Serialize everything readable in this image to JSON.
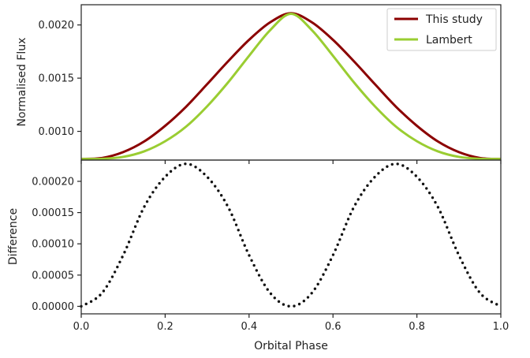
{
  "chart_data": [
    {
      "type": "line",
      "panel": "top",
      "title": "",
      "xlabel": "",
      "ylabel": "Normalised Flux",
      "xlim": [
        0.0,
        1.0
      ],
      "ylim": [
        0.00073,
        0.00219
      ],
      "yticks": [
        0.001,
        0.0015,
        0.002
      ],
      "ytick_labels": [
        "0.0010",
        "0.0015",
        "0.0020"
      ],
      "xticks": [
        0.0,
        0.2,
        0.4,
        0.6,
        0.8,
        1.0
      ],
      "grid": false,
      "legend": "top-right",
      "series": [
        {
          "name": "This study",
          "color": "#8b0000",
          "x": [
            0.0,
            0.05,
            0.1,
            0.15,
            0.2,
            0.25,
            0.3,
            0.35,
            0.4,
            0.45,
            0.5,
            0.55,
            0.6,
            0.65,
            0.7,
            0.75,
            0.8,
            0.85,
            0.9,
            0.95,
            1.0
          ],
          "values": [
            0.00074,
            0.00075,
            0.000805,
            0.000905,
            0.001052,
            0.001232,
            0.001443,
            0.001658,
            0.00186,
            0.002024,
            0.00211,
            0.002024,
            0.00186,
            0.001658,
            0.001443,
            0.001232,
            0.001052,
            0.000905,
            0.000805,
            0.00075,
            0.00074
          ]
        },
        {
          "name": "Lambert",
          "color": "#9acd32",
          "x": [
            0.0,
            0.05,
            0.1,
            0.15,
            0.2,
            0.25,
            0.3,
            0.35,
            0.4,
            0.45,
            0.5,
            0.55,
            0.6,
            0.65,
            0.7,
            0.75,
            0.8,
            0.85,
            0.9,
            0.95,
            1.0
          ],
          "values": [
            0.00074,
            0.000742,
            0.00076,
            0.000812,
            0.000907,
            0.001045,
            0.001235,
            0.00146,
            0.00171,
            0.00195,
            0.002105,
            0.00195,
            0.00171,
            0.00146,
            0.001235,
            0.001045,
            0.000907,
            0.000812,
            0.00076,
            0.000742,
            0.00074
          ]
        }
      ]
    },
    {
      "type": "line",
      "panel": "bottom",
      "title": "",
      "xlabel": "Orbital Phase",
      "ylabel": "Difference",
      "xlim": [
        0.0,
        1.0
      ],
      "ylim": [
        -1.2e-05,
        0.000234
      ],
      "xticks": [
        0.0,
        0.2,
        0.4,
        0.6,
        0.8,
        1.0
      ],
      "xtick_labels": [
        "0.0",
        "0.2",
        "0.4",
        "0.6",
        "0.8",
        "1.0"
      ],
      "yticks": [
        0.0,
        5e-05,
        0.0001,
        0.00015,
        0.0002
      ],
      "ytick_labels": [
        "0.00000",
        "0.00005",
        "0.00010",
        "0.00015",
        "0.00020"
      ],
      "grid": false,
      "line_style": "dotted",
      "series": [
        {
          "color": "#111111",
          "x": [
            0.0,
            0.05,
            0.1,
            0.15,
            0.2,
            0.25,
            0.3,
            0.35,
            0.4,
            0.45,
            0.5,
            0.55,
            0.6,
            0.65,
            0.7,
            0.75,
            0.8,
            0.85,
            0.9,
            0.95,
            1.0
          ],
          "values": [
            0.0,
            2.17e-05,
            8.19e-05,
            0.000159,
            0.0002072,
            0.000228,
            0.0002072,
            0.000159,
            8.19e-05,
            2.17e-05,
            0.0,
            2.17e-05,
            8.19e-05,
            0.000159,
            0.0002072,
            0.000228,
            0.0002072,
            0.000159,
            8.19e-05,
            2.17e-05,
            0.0
          ]
        }
      ]
    }
  ]
}
